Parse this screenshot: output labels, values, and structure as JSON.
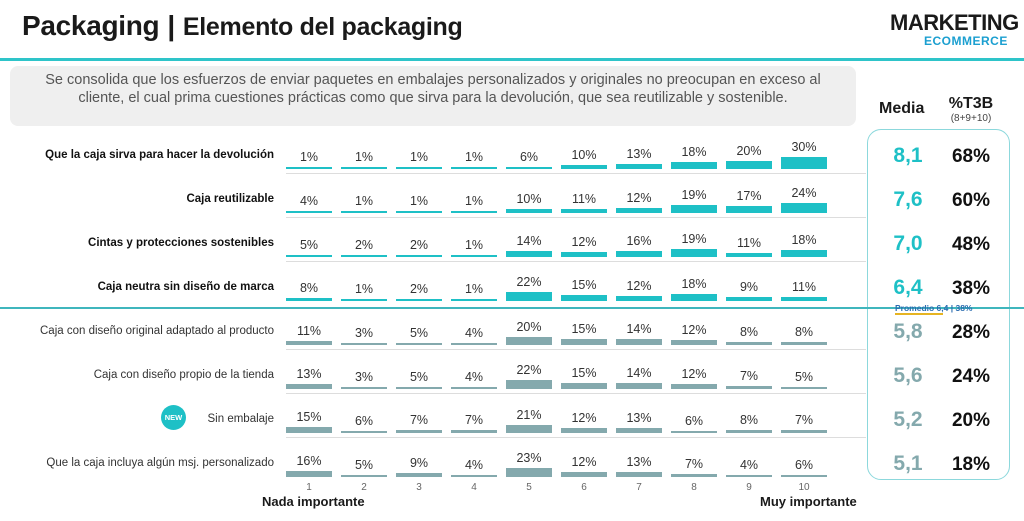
{
  "header": {
    "title": "Packaging",
    "separator": "|",
    "subtitle": "Elemento del packaging",
    "logo_main": "MARKETING",
    "logo_sub": "ECOMMERCE"
  },
  "intro_text": "Se consolida que los esfuerzos de enviar paquetes en embalajes personalizados y originales no preocupan en exceso al cliente, el cual prima cuestiones prácticas como que sirva para la devolución, que sea reutilizable y sostenible.",
  "columns": {
    "media": "Media",
    "t3b": "%T3B",
    "t3b_sub": "(8+9+10)"
  },
  "promedio_label": "Promedio 6,4 | 38%",
  "new_badge": "NEW",
  "colors": {
    "teal": "#1ec0c6",
    "grey": "#84a9ad"
  },
  "chart_data": {
    "type": "bar",
    "scale": [
      1,
      2,
      3,
      4,
      5,
      6,
      7,
      8,
      9,
      10
    ],
    "scale_labels": [
      "1",
      "2",
      "3",
      "4",
      "5",
      "6",
      "7",
      "8",
      "9",
      "10"
    ],
    "xlabel_left": "Nada importante",
    "xlabel_right": "Muy importante",
    "series": [
      {
        "name": "Que la caja sirva para hacer la devolución",
        "values": [
          1,
          1,
          1,
          1,
          6,
          10,
          13,
          18,
          20,
          30
        ],
        "labels": [
          "1%",
          "1%",
          "1%",
          "1%",
          "6%",
          "10%",
          "13%",
          "18%",
          "20%",
          "30%"
        ],
        "media": "8,1",
        "t3b": "68%",
        "highlight": true
      },
      {
        "name": "Caja reutilizable",
        "values": [
          4,
          1,
          1,
          1,
          10,
          11,
          12,
          19,
          17,
          24
        ],
        "labels": [
          "4%",
          "1%",
          "1%",
          "1%",
          "10%",
          "11%",
          "12%",
          "19%",
          "17%",
          "24%"
        ],
        "media": "7,6",
        "t3b": "60%",
        "highlight": true
      },
      {
        "name": "Cintas y protecciones sostenibles",
        "values": [
          5,
          2,
          2,
          1,
          14,
          12,
          16,
          19,
          11,
          18
        ],
        "labels": [
          "5%",
          "2%",
          "2%",
          "1%",
          "14%",
          "12%",
          "16%",
          "19%",
          "11%",
          "18%"
        ],
        "media": "7,0",
        "t3b": "48%",
        "highlight": true
      },
      {
        "name": "Caja neutra sin diseño de marca",
        "values": [
          8,
          1,
          2,
          1,
          22,
          15,
          12,
          18,
          9,
          11
        ],
        "labels": [
          "8%",
          "1%",
          "2%",
          "1%",
          "22%",
          "15%",
          "12%",
          "18%",
          "9%",
          "11%"
        ],
        "media": "6,4",
        "t3b": "38%",
        "highlight": true
      },
      {
        "name": "Caja con diseño original adaptado al producto",
        "values": [
          11,
          3,
          5,
          4,
          20,
          15,
          14,
          12,
          8,
          8
        ],
        "labels": [
          "11%",
          "3%",
          "5%",
          "4%",
          "20%",
          "15%",
          "14%",
          "12%",
          "8%",
          "8%"
        ],
        "media": "5,8",
        "t3b": "28%",
        "highlight": false
      },
      {
        "name": "Caja con diseño propio de la tienda",
        "values": [
          13,
          3,
          5,
          4,
          22,
          15,
          14,
          12,
          7,
          5
        ],
        "labels": [
          "13%",
          "3%",
          "5%",
          "4%",
          "22%",
          "15%",
          "14%",
          "12%",
          "7%",
          "5%"
        ],
        "media": "5,6",
        "t3b": "24%",
        "highlight": false
      },
      {
        "name": "Sin embalaje",
        "values": [
          15,
          6,
          7,
          7,
          21,
          12,
          13,
          6,
          8,
          7
        ],
        "labels": [
          "15%",
          "6%",
          "7%",
          "7%",
          "21%",
          "12%",
          "13%",
          "6%",
          "8%",
          "7%"
        ],
        "media": "5,2",
        "t3b": "20%",
        "highlight": false,
        "new": true
      },
      {
        "name": "Que la caja incluya algún msj. personalizado",
        "values": [
          16,
          5,
          9,
          4,
          23,
          12,
          13,
          7,
          4,
          6
        ],
        "labels": [
          "16%",
          "5%",
          "9%",
          "4%",
          "23%",
          "12%",
          "13%",
          "7%",
          "4%",
          "6%"
        ],
        "media": "5,1",
        "t3b": "18%",
        "highlight": false
      }
    ]
  }
}
